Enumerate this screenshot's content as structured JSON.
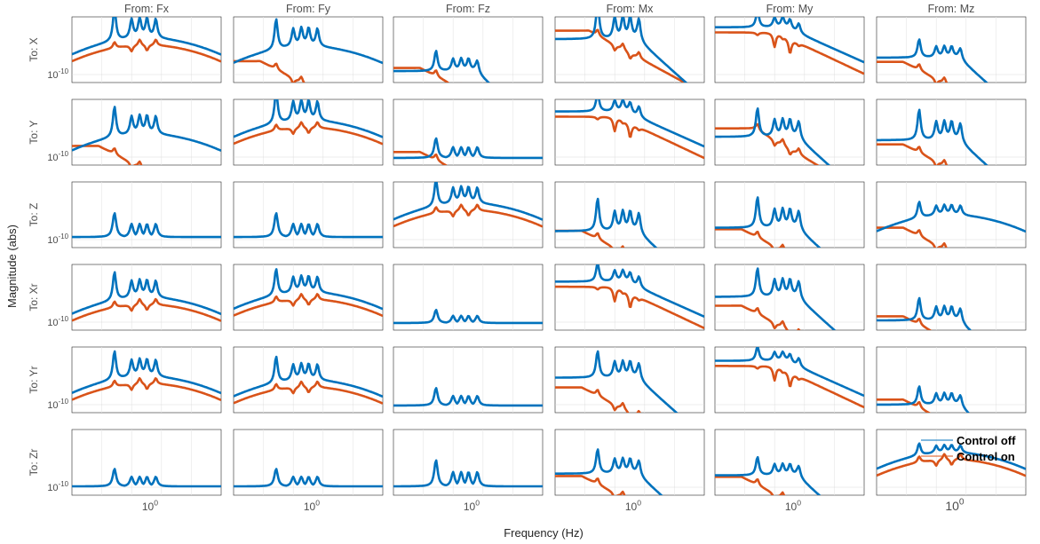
{
  "chart_data": {
    "type": "line",
    "layout": "6x6 grid of Bode magnitude subplots",
    "xlabel": "Frequency  (Hz)",
    "ylabel": "Magnitude (abs)",
    "xscale": "log",
    "yscale": "log",
    "xlim_hz": [
      0.35,
      2.6
    ],
    "x_tick_label": "10^0",
    "x_tick_value": 1,
    "y_tick_label": "10^-10",
    "y_tick_value": 1e-10,
    "column_titles": [
      "From: Fx",
      "From: Fy",
      "From: Fz",
      "From: Mx",
      "From: My",
      "From: Mz"
    ],
    "row_labels": [
      "To: X",
      "To: Y",
      "To: Z",
      "To: Xr",
      "To: Yr",
      "To: Zr"
    ],
    "series": [
      {
        "name": "Control off",
        "color": "#0072bd"
      },
      {
        "name": "Control on",
        "color": "#d95319"
      }
    ],
    "legend": {
      "location": "top-right",
      "subplot": "To: Zr / From: Mz",
      "entries": [
        "Control off",
        "Control on"
      ]
    },
    "mode_frequencies_hz": [
      0.62,
      0.78,
      0.87,
      0.96,
      1.08
    ],
    "subplot_shapes_note": "each cell: [category, log10 level of blue baseline (0=bottom tick, ~3=top), mode peak gain, orange variant]",
    "cells": [
      [
        [
          "bell",
          1.6,
          1.6,
          "bell"
        ],
        [
          "bell",
          1.1,
          1.5,
          "low"
        ],
        [
          "flat",
          0.2,
          1.0,
          "low"
        ],
        [
          "flat",
          2.1,
          1.8,
          "high"
        ],
        [
          "decay",
          2.8,
          0.8,
          "decay"
        ],
        [
          "flat",
          1.0,
          0.9,
          "low"
        ]
      ],
      [
        [
          "bell",
          0.8,
          1.5,
          "low"
        ],
        [
          "bell",
          1.6,
          1.6,
          "bell"
        ],
        [
          "spikes",
          0.0,
          0.9,
          "low"
        ],
        [
          "decay",
          2.7,
          0.9,
          "decay"
        ],
        [
          "flat",
          1.2,
          1.4,
          "mid"
        ],
        [
          "flat",
          1.0,
          1.5,
          "low"
        ]
      ],
      [
        [
          "spikes",
          0.2,
          1.1,
          "none"
        ],
        [
          "spikes",
          0.2,
          1.1,
          "none"
        ],
        [
          "bell",
          1.6,
          1.3,
          "bell"
        ],
        [
          "flat",
          0.5,
          1.6,
          "low"
        ],
        [
          "flat",
          0.7,
          1.5,
          "low"
        ],
        [
          "bell",
          0.9,
          0.8,
          "low"
        ]
      ],
      [
        [
          "bell",
          0.9,
          1.4,
          "bell"
        ],
        [
          "bell",
          1.2,
          1.3,
          "bell"
        ],
        [
          "spikes",
          0.0,
          0.6,
          "none"
        ],
        [
          "decay",
          2.4,
          0.9,
          "decay"
        ],
        [
          "flat",
          1.5,
          1.4,
          "low"
        ],
        [
          "flat",
          0.1,
          1.1,
          "low"
        ]
      ],
      [
        [
          "bell",
          1.1,
          1.4,
          "bell"
        ],
        [
          "bell",
          0.9,
          1.3,
          "bell"
        ],
        [
          "spikes",
          0.0,
          0.8,
          "none"
        ],
        [
          "flat",
          1.6,
          1.3,
          "low"
        ],
        [
          "decay",
          2.6,
          0.7,
          "decay"
        ],
        [
          "flat",
          0.0,
          0.9,
          "low"
        ]
      ],
      [
        [
          "spikes",
          0.1,
          0.8,
          "none"
        ],
        [
          "spikes",
          0.1,
          0.8,
          "none"
        ],
        [
          "spikes",
          0.1,
          1.2,
          "none"
        ],
        [
          "flat",
          0.8,
          1.2,
          "low"
        ],
        [
          "flat",
          0.7,
          0.9,
          "low"
        ],
        [
          "bell",
          1.5,
          0.6,
          "bell"
        ]
      ]
    ]
  }
}
